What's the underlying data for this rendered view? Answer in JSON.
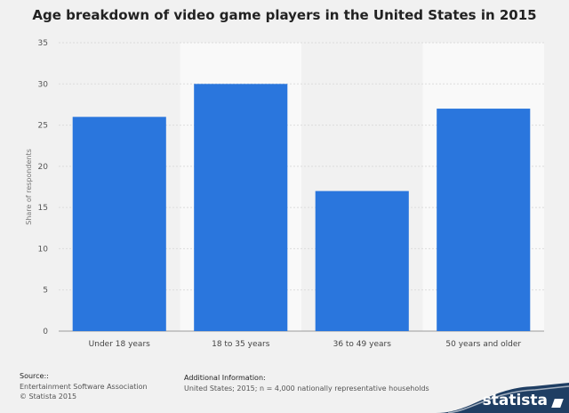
{
  "colors": {
    "bar": "#2a76dd",
    "background": "#f1f1f1",
    "band": "#f9f9f9",
    "brand": "#1f3e63"
  },
  "chart_data": {
    "type": "bar",
    "title": "Age breakdown of video game players in the United States in 2015",
    "xlabel": "",
    "ylabel": "Share of respondents",
    "categories": [
      "Under 18 years",
      "18 to 35 years",
      "36 to 49 years",
      "50 years and older"
    ],
    "values": [
      26,
      30,
      17,
      27
    ],
    "ylim": [
      0,
      35
    ],
    "yticks": [
      "0",
      "5",
      "10",
      "15",
      "20",
      "25",
      "30",
      "35"
    ],
    "grid": true
  },
  "footer": {
    "source_title": "Source::",
    "source_lines": [
      "Entertainment Software Association",
      "© Statista 2015"
    ],
    "info_title": "Additional Information:",
    "info_text": "United States; 2015; n = 4,000 nationally representative households",
    "brand": "statista"
  }
}
